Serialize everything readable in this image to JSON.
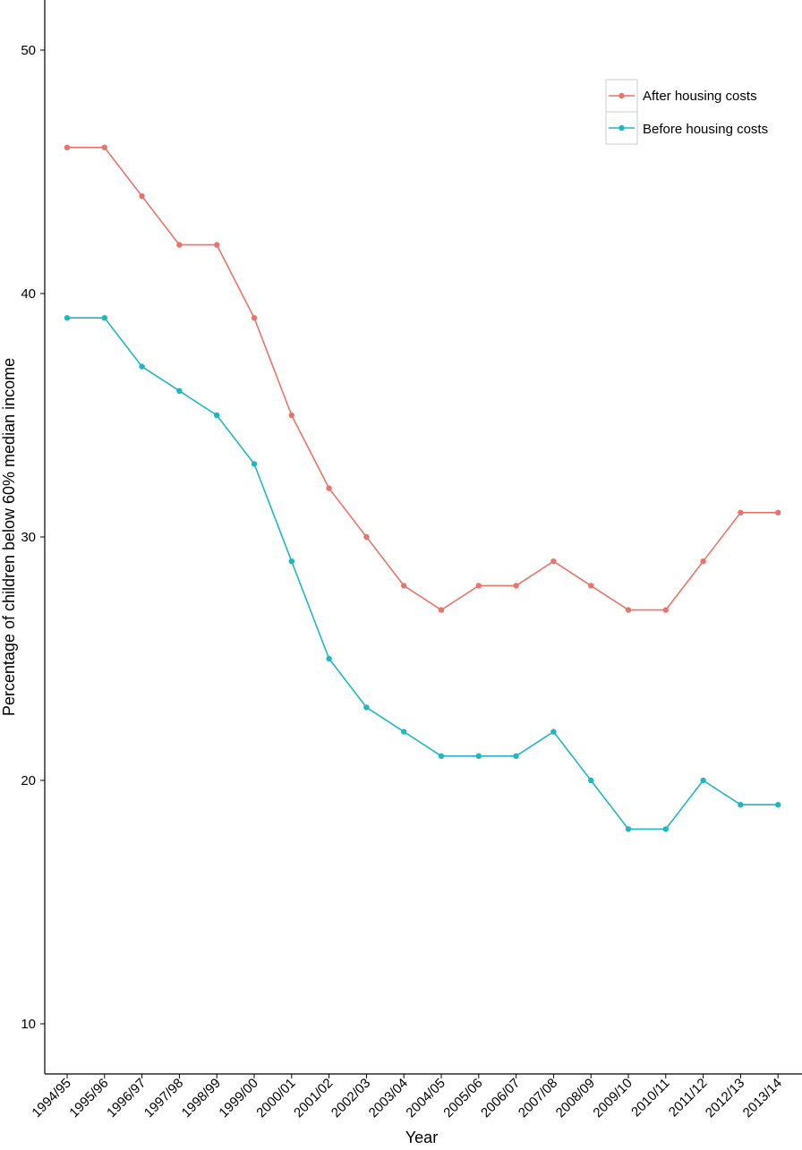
{
  "chart_data": {
    "type": "line",
    "title": "",
    "xlabel": "Year",
    "ylabel": "Percentage of children below 60% median income",
    "ylim": [
      8,
      52
    ],
    "yticks": [
      10,
      20,
      30,
      40,
      50
    ],
    "grid": false,
    "legend_position": "top-right",
    "categories": [
      "1994/95",
      "1995/96",
      "1996/97",
      "1997/98",
      "1998/99",
      "1999/00",
      "2000/01",
      "2001/02",
      "2002/03",
      "2003/04",
      "2004/05",
      "2005/06",
      "2006/07",
      "2007/08",
      "2008/09",
      "2009/10",
      "2010/11",
      "2011/12",
      "2012/13",
      "2013/14"
    ],
    "series": [
      {
        "name": "After housing costs",
        "color": "#E8756C",
        "values": [
          46,
          46,
          44,
          42,
          42,
          39,
          35,
          32,
          30,
          28,
          27,
          28,
          28,
          29,
          28,
          27,
          27,
          29,
          31,
          31
        ]
      },
      {
        "name": "Before housing costs",
        "color": "#20B8C0",
        "values": [
          39,
          39,
          37,
          36,
          35,
          33,
          29,
          25,
          23,
          22,
          21,
          21,
          21,
          22,
          20,
          18,
          18,
          20,
          19,
          19
        ]
      }
    ]
  }
}
